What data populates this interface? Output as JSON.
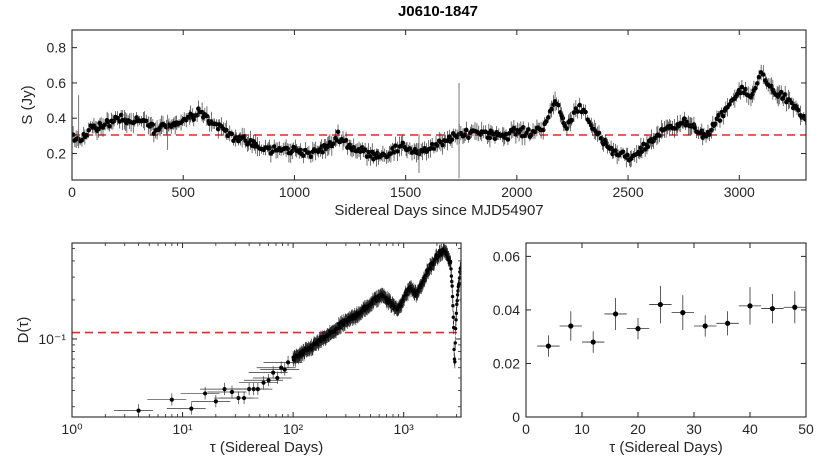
{
  "figure": {
    "title": "J0610-1847"
  },
  "chart_data": [
    {
      "id": "flux",
      "type": "scatter",
      "xlabel": "Sidereal Days since MJD54907",
      "ylabel": "S (Jy)",
      "xlim": [
        0,
        3300
      ],
      "ylim": [
        0.05,
        0.9
      ],
      "xticks": [
        0,
        500,
        1000,
        1500,
        2000,
        2500,
        3000
      ],
      "yticks": [
        0.2,
        0.4,
        0.6,
        0.8
      ],
      "xtick_labels": [
        "0",
        "500",
        "1000",
        "1500",
        "2000",
        "2500",
        "3000"
      ],
      "ytick_labels": [
        "0.2",
        "0.4",
        "0.6",
        "0.8"
      ],
      "reference_line": {
        "y": 0.305,
        "style": "dashed",
        "color": "#e8262b"
      },
      "trend": [
        [
          0,
          0.3
        ],
        [
          30,
          0.27
        ],
        [
          80,
          0.34
        ],
        [
          150,
          0.36
        ],
        [
          200,
          0.4
        ],
        [
          260,
          0.37
        ],
        [
          320,
          0.39
        ],
        [
          380,
          0.33
        ],
        [
          420,
          0.36
        ],
        [
          470,
          0.37
        ],
        [
          520,
          0.4
        ],
        [
          580,
          0.45
        ],
        [
          620,
          0.38
        ],
        [
          680,
          0.34
        ],
        [
          720,
          0.3
        ],
        [
          780,
          0.27
        ],
        [
          850,
          0.23
        ],
        [
          900,
          0.22
        ],
        [
          1000,
          0.22
        ],
        [
          1080,
          0.2
        ],
        [
          1150,
          0.24
        ],
        [
          1200,
          0.3
        ],
        [
          1250,
          0.24
        ],
        [
          1330,
          0.2
        ],
        [
          1400,
          0.19
        ],
        [
          1480,
          0.24
        ],
        [
          1560,
          0.21
        ],
        [
          1640,
          0.24
        ],
        [
          1700,
          0.29
        ],
        [
          1760,
          0.3
        ],
        [
          1800,
          0.33
        ],
        [
          1850,
          0.32
        ],
        [
          1900,
          0.31
        ],
        [
          1950,
          0.3
        ],
        [
          2000,
          0.33
        ],
        [
          2060,
          0.31
        ],
        [
          2120,
          0.36
        ],
        [
          2180,
          0.5
        ],
        [
          2220,
          0.34
        ],
        [
          2280,
          0.48
        ],
        [
          2330,
          0.38
        ],
        [
          2380,
          0.27
        ],
        [
          2430,
          0.21
        ],
        [
          2500,
          0.17
        ],
        [
          2570,
          0.23
        ],
        [
          2620,
          0.29
        ],
        [
          2680,
          0.35
        ],
        [
          2740,
          0.38
        ],
        [
          2800,
          0.34
        ],
        [
          2860,
          0.3
        ],
        [
          2900,
          0.38
        ],
        [
          2950,
          0.47
        ],
        [
          3000,
          0.55
        ],
        [
          3060,
          0.53
        ],
        [
          3100,
          0.66
        ],
        [
          3150,
          0.56
        ],
        [
          3200,
          0.52
        ],
        [
          3260,
          0.45
        ],
        [
          3300,
          0.38
        ]
      ],
      "point_color": "#000000"
    },
    {
      "id": "structure_function",
      "type": "scatter",
      "xscale": "log",
      "yscale": "log",
      "xlabel": "τ (Sidereal Days)",
      "ylabel": "D(τ)",
      "xlim": [
        1,
        3300
      ],
      "ylim": [
        0.025,
        0.55
      ],
      "xticks": [
        1,
        10,
        100,
        1000
      ],
      "xtick_labels": [
        "10⁰",
        "10¹",
        "10²",
        "10³"
      ],
      "yticks": [
        0.1
      ],
      "ytick_labels": [
        "10⁻¹"
      ],
      "reference_line": {
        "y": 0.112,
        "style": "dashed",
        "color": "#e8262b"
      },
      "points": [
        [
          4,
          0.028
        ],
        [
          8,
          0.034
        ],
        [
          12,
          0.029
        ],
        [
          16,
          0.038
        ],
        [
          20,
          0.033
        ],
        [
          24,
          0.041
        ],
        [
          28,
          0.039
        ],
        [
          32,
          0.035
        ],
        [
          36,
          0.035
        ],
        [
          40,
          0.041
        ],
        [
          44,
          0.041
        ],
        [
          48,
          0.041
        ],
        [
          54,
          0.046
        ],
        [
          60,
          0.048
        ],
        [
          66,
          0.055
        ],
        [
          72,
          0.05
        ],
        [
          78,
          0.06
        ],
        [
          84,
          0.058
        ],
        [
          90,
          0.066
        ]
      ],
      "trend": [
        [
          100,
          0.07
        ],
        [
          130,
          0.08
        ],
        [
          170,
          0.095
        ],
        [
          220,
          0.11
        ],
        [
          280,
          0.13
        ],
        [
          360,
          0.15
        ],
        [
          450,
          0.17
        ],
        [
          550,
          0.2
        ],
        [
          650,
          0.22
        ],
        [
          720,
          0.2
        ],
        [
          800,
          0.18
        ],
        [
          880,
          0.17
        ],
        [
          960,
          0.19
        ],
        [
          1050,
          0.22
        ],
        [
          1150,
          0.25
        ],
        [
          1300,
          0.22
        ],
        [
          1450,
          0.26
        ],
        [
          1650,
          0.33
        ],
        [
          1900,
          0.4
        ],
        [
          2150,
          0.46
        ],
        [
          2350,
          0.48
        ],
        [
          2500,
          0.44
        ],
        [
          2650,
          0.38
        ],
        [
          2780,
          0.2
        ],
        [
          2850,
          0.09
        ],
        [
          2900,
          0.06
        ],
        [
          2950,
          0.12
        ],
        [
          3050,
          0.2
        ],
        [
          3150,
          0.26
        ],
        [
          3250,
          0.35
        ]
      ],
      "point_color": "#000000"
    },
    {
      "id": "structure_function_zoom",
      "type": "scatter",
      "xlabel": "τ (Sidereal Days)",
      "ylabel": "",
      "xlim": [
        0,
        50
      ],
      "ylim": [
        0,
        0.065
      ],
      "xticks": [
        0,
        10,
        20,
        30,
        40,
        50
      ],
      "xtick_labels": [
        "0",
        "10",
        "20",
        "30",
        "40",
        "50"
      ],
      "yticks": [
        0,
        0.02,
        0.04,
        0.06
      ],
      "ytick_labels": [
        "0",
        "0.02",
        "0.04",
        "0.06"
      ],
      "points": [
        {
          "x": 4,
          "y": 0.0265,
          "xerr": 2,
          "yerr": 0.004
        },
        {
          "x": 8,
          "y": 0.034,
          "xerr": 2,
          "yerr": 0.0055
        },
        {
          "x": 12,
          "y": 0.028,
          "xerr": 2,
          "yerr": 0.004
        },
        {
          "x": 16,
          "y": 0.0385,
          "xerr": 2,
          "yerr": 0.006
        },
        {
          "x": 20,
          "y": 0.033,
          "xerr": 2,
          "yerr": 0.004
        },
        {
          "x": 24,
          "y": 0.042,
          "xerr": 2,
          "yerr": 0.007
        },
        {
          "x": 28,
          "y": 0.039,
          "xerr": 2,
          "yerr": 0.0065
        },
        {
          "x": 32,
          "y": 0.034,
          "xerr": 2,
          "yerr": 0.004
        },
        {
          "x": 36,
          "y": 0.035,
          "xerr": 2,
          "yerr": 0.0045
        },
        {
          "x": 40,
          "y": 0.0415,
          "xerr": 2,
          "yerr": 0.007
        },
        {
          "x": 44,
          "y": 0.0405,
          "xerr": 2,
          "yerr": 0.0055
        },
        {
          "x": 48,
          "y": 0.041,
          "xerr": 2,
          "yerr": 0.006
        }
      ],
      "point_color": "#000000"
    }
  ]
}
